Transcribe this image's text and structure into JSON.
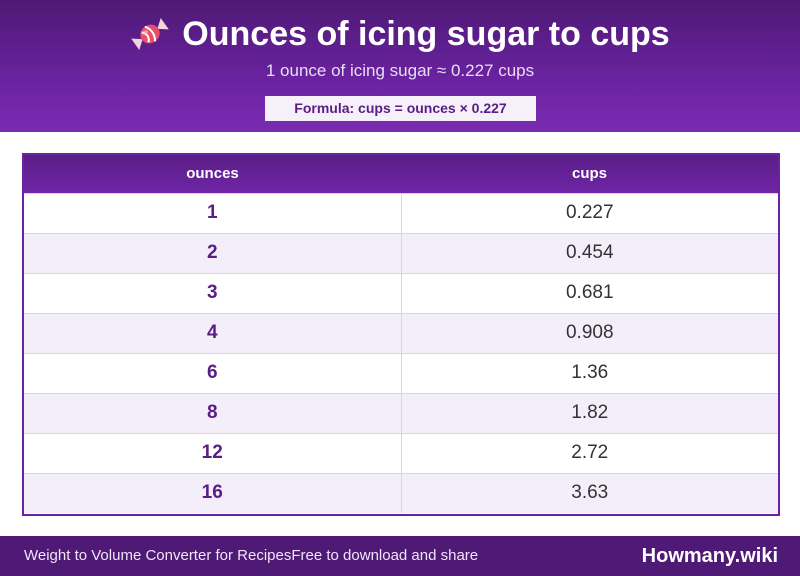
{
  "header": {
    "icon": "candy-icon",
    "title": "Ounces of icing sugar to cups",
    "subtitle": "1 ounce of icing sugar ≈ 0.227 cups",
    "formula": "Formula: cups = ounces × 0.227"
  },
  "table": {
    "columns": [
      "ounces",
      "cups"
    ],
    "rows": [
      [
        "1",
        "0.227"
      ],
      [
        "2",
        "0.454"
      ],
      [
        "3",
        "0.681"
      ],
      [
        "4",
        "0.908"
      ],
      [
        "6",
        "1.36"
      ],
      [
        "8",
        "1.82"
      ],
      [
        "12",
        "2.72"
      ],
      [
        "16",
        "3.63"
      ]
    ]
  },
  "footer": {
    "left_text_1": "Weight to Volume Converter for Recipes",
    "left_text_2": "Free to download and share",
    "brand": "Howmany.wiki"
  },
  "colors": {
    "primary": "#6a22a0",
    "dark": "#4e1a75",
    "row_alt": "#f4eefa"
  }
}
